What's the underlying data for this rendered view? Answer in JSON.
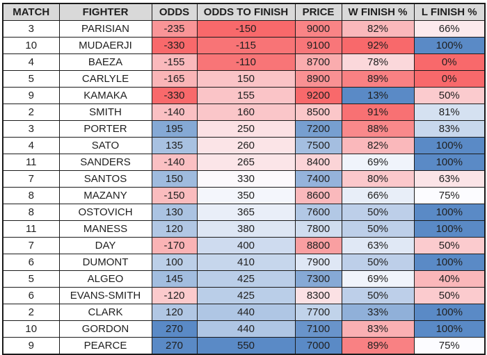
{
  "colors": {
    "header_bg": "#D9D9D9",
    "grid_border": "#1A1A1A",
    "text": "#1F1F1F",
    "scale_low_red": "#F8696B",
    "scale_mid_white": "#FCFCFF",
    "scale_high_blue": "#5A8AC6"
  },
  "table": {
    "headers": [
      "MATCH",
      "FIGHTER",
      "ODDS",
      "ODDS TO FINISH",
      "PRICE",
      "W FINISH %",
      "L FINISH %"
    ],
    "rows": [
      {
        "match": "3",
        "fighter": "PARISIAN",
        "odds": {
          "text": "-235",
          "bg": "#F99597"
        },
        "odds_to_finish": {
          "text": "-150",
          "bg": "#F8696B"
        },
        "price": {
          "text": "9000",
          "bg": "#F98486"
        },
        "w_finish_pct": {
          "text": "82%",
          "bg": "#FAB8BB"
        },
        "l_finish_pct": {
          "text": "66%",
          "bg": "#FCEAED"
        }
      },
      {
        "match": "10",
        "fighter": "MUDAERJI",
        "odds": {
          "text": "-330",
          "bg": "#F8696B"
        },
        "odds_to_finish": {
          "text": "-115",
          "bg": "#F87476"
        },
        "price": {
          "text": "9100",
          "bg": "#F87679"
        },
        "w_finish_pct": {
          "text": "92%",
          "bg": "#F8696B"
        },
        "l_finish_pct": {
          "text": "100%",
          "bg": "#5A8AC6"
        }
      },
      {
        "match": "4",
        "fighter": "BAEZA",
        "odds": {
          "text": "-155",
          "bg": "#FAB9BC"
        },
        "odds_to_finish": {
          "text": "-110",
          "bg": "#F87577"
        },
        "price": {
          "text": "8700",
          "bg": "#FAACAE"
        },
        "w_finish_pct": {
          "text": "78%",
          "bg": "#FBD8DB"
        },
        "l_finish_pct": {
          "text": "0%",
          "bg": "#F8696B"
        }
      },
      {
        "match": "5",
        "fighter": "CARLYLE",
        "odds": {
          "text": "-165",
          "bg": "#FAB5B7"
        },
        "odds_to_finish": {
          "text": "150",
          "bg": "#FAC3C6"
        },
        "price": {
          "text": "8900",
          "bg": "#F99193"
        },
        "w_finish_pct": {
          "text": "89%",
          "bg": "#F98183"
        },
        "l_finish_pct": {
          "text": "0%",
          "bg": "#F8696B"
        }
      },
      {
        "match": "9",
        "fighter": "KAMAKA",
        "odds": {
          "text": "-330",
          "bg": "#F8696B"
        },
        "odds_to_finish": {
          "text": "155",
          "bg": "#FAC4C7"
        },
        "price": {
          "text": "9200",
          "bg": "#F8696B"
        },
        "w_finish_pct": {
          "text": "13%",
          "bg": "#5A8AC6"
        },
        "l_finish_pct": {
          "text": "50%",
          "bg": "#FBCBCE"
        }
      },
      {
        "match": "2",
        "fighter": "SMITH",
        "odds": {
          "text": "-140",
          "bg": "#FAC0C3"
        },
        "odds_to_finish": {
          "text": "160",
          "bg": "#FAC6C9"
        },
        "price": {
          "text": "8500",
          "bg": "#FBC7C9"
        },
        "w_finish_pct": {
          "text": "91%",
          "bg": "#F87173"
        },
        "l_finish_pct": {
          "text": "81%",
          "bg": "#D5E1F1"
        }
      },
      {
        "match": "3",
        "fighter": "PORTER",
        "odds": {
          "text": "195",
          "bg": "#85A9D5"
        },
        "odds_to_finish": {
          "text": "250",
          "bg": "#FBE1E4"
        },
        "price": {
          "text": "7200",
          "bg": "#779FD0"
        },
        "w_finish_pct": {
          "text": "88%",
          "bg": "#F9898B"
        },
        "l_finish_pct": {
          "text": "83%",
          "bg": "#C8D8ED"
        }
      },
      {
        "match": "4",
        "fighter": "SATO",
        "odds": {
          "text": "135",
          "bg": "#A8C1E1"
        },
        "odds_to_finish": {
          "text": "260",
          "bg": "#FBE4E7"
        },
        "price": {
          "text": "7500",
          "bg": "#A4BEE0"
        },
        "w_finish_pct": {
          "text": "82%",
          "bg": "#FAB8BB"
        },
        "l_finish_pct": {
          "text": "100%",
          "bg": "#5A8AC6"
        }
      },
      {
        "match": "11",
        "fighter": "SANDERS",
        "odds": {
          "text": "-140",
          "bg": "#FAC0C3"
        },
        "odds_to_finish": {
          "text": "265",
          "bg": "#FBE5E8"
        },
        "price": {
          "text": "8400",
          "bg": "#FBD4D7"
        },
        "w_finish_pct": {
          "text": "69%",
          "bg": "#F0F4FB"
        },
        "l_finish_pct": {
          "text": "100%",
          "bg": "#5A8AC6"
        }
      },
      {
        "match": "7",
        "fighter": "SANTOS",
        "odds": {
          "text": "150",
          "bg": "#9FBBDE"
        },
        "odds_to_finish": {
          "text": "330",
          "bg": "#FCF9FC"
        },
        "price": {
          "text": "7400",
          "bg": "#95B3DB"
        },
        "w_finish_pct": {
          "text": "80%",
          "bg": "#FBC8CB"
        },
        "l_finish_pct": {
          "text": "63%",
          "bg": "#FBE4E7"
        }
      },
      {
        "match": "8",
        "fighter": "MAZANY",
        "odds": {
          "text": "-150",
          "bg": "#FABCBE"
        },
        "odds_to_finish": {
          "text": "350",
          "bg": "#F4F6FC"
        },
        "price": {
          "text": "8600",
          "bg": "#FAB9BC"
        },
        "w_finish_pct": {
          "text": "66%",
          "bg": "#E8EEF8"
        },
        "l_finish_pct": {
          "text": "75%",
          "bg": "#FCFCFF"
        }
      },
      {
        "match": "8",
        "fighter": "OSTOVICH",
        "odds": {
          "text": "130",
          "bg": "#ABC3E2"
        },
        "odds_to_finish": {
          "text": "365",
          "bg": "#E9EEF8"
        },
        "price": {
          "text": "7600",
          "bg": "#B2C8E5"
        },
        "w_finish_pct": {
          "text": "50%",
          "bg": "#BDCFE9"
        },
        "l_finish_pct": {
          "text": "100%",
          "bg": "#5A8AC6"
        }
      },
      {
        "match": "11",
        "fighter": "MANESS",
        "odds": {
          "text": "120",
          "bg": "#B1C7E4"
        },
        "odds_to_finish": {
          "text": "380",
          "bg": "#DDE6F4"
        },
        "price": {
          "text": "7800",
          "bg": "#D0DDEF"
        },
        "w_finish_pct": {
          "text": "50%",
          "bg": "#BDCFE9"
        },
        "l_finish_pct": {
          "text": "100%",
          "bg": "#5A8AC6"
        }
      },
      {
        "match": "7",
        "fighter": "DAY",
        "odds": {
          "text": "-170",
          "bg": "#FAB3B5"
        },
        "odds_to_finish": {
          "text": "400",
          "bg": "#CEDBEF"
        },
        "price": {
          "text": "8800",
          "bg": "#F99FA1"
        },
        "w_finish_pct": {
          "text": "63%",
          "bg": "#E0E8F5"
        },
        "l_finish_pct": {
          "text": "50%",
          "bg": "#FBCBCE"
        }
      },
      {
        "match": "6",
        "fighter": "DUMONT",
        "odds": {
          "text": "100",
          "bg": "#BCCFE8"
        },
        "odds_to_finish": {
          "text": "410",
          "bg": "#C6D6EC"
        },
        "price": {
          "text": "7900",
          "bg": "#DFE7F5"
        },
        "w_finish_pct": {
          "text": "50%",
          "bg": "#BDCFE9"
        },
        "l_finish_pct": {
          "text": "100%",
          "bg": "#5A8AC6"
        }
      },
      {
        "match": "5",
        "fighter": "ALGEO",
        "odds": {
          "text": "145",
          "bg": "#A2BDDF"
        },
        "odds_to_finish": {
          "text": "425",
          "bg": "#BACEE8"
        },
        "price": {
          "text": "7300",
          "bg": "#86A9D5"
        },
        "w_finish_pct": {
          "text": "69%",
          "bg": "#F0F4FB"
        },
        "l_finish_pct": {
          "text": "40%",
          "bg": "#FAB7BA"
        }
      },
      {
        "match": "6",
        "fighter": "EVANS-SMITH",
        "odds": {
          "text": "-120",
          "bg": "#FBCACC"
        },
        "odds_to_finish": {
          "text": "425",
          "bg": "#BACEE8"
        },
        "price": {
          "text": "8300",
          "bg": "#FBE1E4"
        },
        "w_finish_pct": {
          "text": "50%",
          "bg": "#BDCFE9"
        },
        "l_finish_pct": {
          "text": "50%",
          "bg": "#FBCBCE"
        }
      },
      {
        "match": "2",
        "fighter": "CLARK",
        "odds": {
          "text": "120",
          "bg": "#B1C7E4"
        },
        "odds_to_finish": {
          "text": "440",
          "bg": "#AFC6E4"
        },
        "price": {
          "text": "7700",
          "bg": "#C1D3EA"
        },
        "w_finish_pct": {
          "text": "33%",
          "bg": "#90B0D9"
        },
        "l_finish_pct": {
          "text": "100%",
          "bg": "#5A8AC6"
        }
      },
      {
        "match": "10",
        "fighter": "GORDON",
        "odds": {
          "text": "270",
          "bg": "#5A8AC6"
        },
        "odds_to_finish": {
          "text": "440",
          "bg": "#AFC6E4"
        },
        "price": {
          "text": "7100",
          "bg": "#6994CB"
        },
        "w_finish_pct": {
          "text": "83%",
          "bg": "#FAB0B3"
        },
        "l_finish_pct": {
          "text": "100%",
          "bg": "#5A8AC6"
        }
      },
      {
        "match": "9",
        "fighter": "PEARCE",
        "odds": {
          "text": "270",
          "bg": "#5A8AC6"
        },
        "odds_to_finish": {
          "text": "550",
          "bg": "#5A8AC6"
        },
        "price": {
          "text": "7000",
          "bg": "#5A8AC6"
        },
        "w_finish_pct": {
          "text": "89%",
          "bg": "#F98183"
        },
        "l_finish_pct": {
          "text": "75%",
          "bg": "#FCFCFF"
        }
      }
    ]
  },
  "chart_data": {
    "type": "table",
    "title": "",
    "columns": [
      "MATCH",
      "FIGHTER",
      "ODDS",
      "ODDS TO FINISH",
      "PRICE",
      "W FINISH %",
      "L FINISH %"
    ],
    "rows": [
      [
        3,
        "PARISIAN",
        -235,
        -150,
        9000,
        82,
        66
      ],
      [
        10,
        "MUDAERJI",
        -330,
        -115,
        9100,
        92,
        100
      ],
      [
        4,
        "BAEZA",
        -155,
        -110,
        8700,
        78,
        0
      ],
      [
        5,
        "CARLYLE",
        -165,
        150,
        8900,
        89,
        0
      ],
      [
        9,
        "KAMAKA",
        -330,
        155,
        9200,
        13,
        50
      ],
      [
        2,
        "SMITH",
        -140,
        160,
        8500,
        91,
        81
      ],
      [
        3,
        "PORTER",
        195,
        250,
        7200,
        88,
        83
      ],
      [
        4,
        "SATO",
        135,
        260,
        7500,
        82,
        100
      ],
      [
        11,
        "SANDERS",
        -140,
        265,
        8400,
        69,
        100
      ],
      [
        7,
        "SANTOS",
        150,
        330,
        7400,
        80,
        63
      ],
      [
        8,
        "MAZANY",
        -150,
        350,
        8600,
        66,
        75
      ],
      [
        8,
        "OSTOVICH",
        130,
        365,
        7600,
        50,
        100
      ],
      [
        11,
        "MANESS",
        120,
        380,
        7800,
        50,
        100
      ],
      [
        7,
        "DAY",
        -170,
        400,
        8800,
        63,
        50
      ],
      [
        6,
        "DUMONT",
        100,
        410,
        7900,
        50,
        100
      ],
      [
        5,
        "ALGEO",
        145,
        425,
        7300,
        69,
        40
      ],
      [
        6,
        "EVANS-SMITH",
        -120,
        425,
        8300,
        50,
        50
      ],
      [
        2,
        "CLARK",
        120,
        440,
        7700,
        33,
        100
      ],
      [
        10,
        "GORDON",
        270,
        440,
        7100,
        83,
        100
      ],
      [
        9,
        "PEARCE",
        270,
        550,
        7000,
        89,
        75
      ]
    ],
    "notes": "Cells in ODDS, ODDS TO FINISH, PRICE, W FINISH %, L FINISH % use a red-white-blue 3-color conditional-formatting scale (#F8696B / #FCFCFF / #5A8AC6). W/L FINISH values shown as percentages."
  }
}
